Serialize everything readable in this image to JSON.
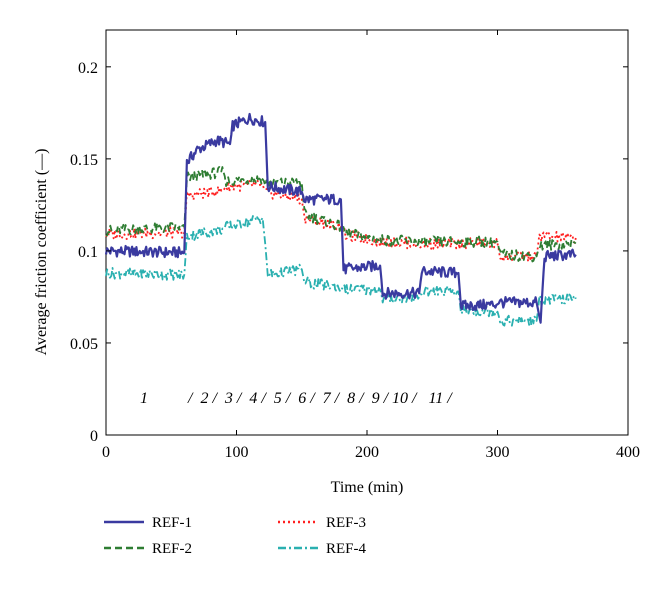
{
  "chart_data": {
    "type": "line",
    "xlabel": "Time (min)",
    "ylabel": "Average friction coefficient (—)",
    "xlim": [
      0,
      400
    ],
    "ylim": [
      0,
      0.22
    ],
    "xticks": [
      0,
      100,
      200,
      300,
      400
    ],
    "xtick_labels": [
      "0",
      "100",
      "200",
      "300",
      "400"
    ],
    "yticks": [
      0,
      0.05,
      0.1,
      0.15,
      0.2
    ],
    "ytick_labels": [
      "0",
      "0.05",
      "0.1",
      "0.15",
      "0.2"
    ],
    "grid": false,
    "legend_position": "below",
    "stage_annotation": "1          /  2 /  3 /  4 /  5 /  6 /  7 /  8 /  9 / 10 /   11 /",
    "series": [
      {
        "name": "REF-1",
        "color": "#3a3aa0",
        "dash": "solid",
        "points": [
          [
            0,
            0.1
          ],
          [
            60,
            0.099
          ],
          [
            62,
            0.148
          ],
          [
            70,
            0.155
          ],
          [
            85,
            0.16
          ],
          [
            95,
            0.158
          ],
          [
            97,
            0.168
          ],
          [
            110,
            0.172
          ],
          [
            122,
            0.17
          ],
          [
            124,
            0.135
          ],
          [
            150,
            0.132
          ],
          [
            152,
            0.128
          ],
          [
            180,
            0.128
          ],
          [
            182,
            0.09
          ],
          [
            210,
            0.092
          ],
          [
            212,
            0.077
          ],
          [
            240,
            0.077
          ],
          [
            242,
            0.089
          ],
          [
            270,
            0.088
          ],
          [
            272,
            0.07
          ],
          [
            300,
            0.071
          ],
          [
            302,
            0.072
          ],
          [
            330,
            0.072
          ],
          [
            333,
            0.061
          ],
          [
            336,
            0.097
          ],
          [
            360,
            0.098
          ]
        ]
      },
      {
        "name": "REF-2",
        "color": "#2e7d32",
        "dash": "dashed",
        "points": [
          [
            0,
            0.111
          ],
          [
            60,
            0.113
          ],
          [
            62,
            0.14
          ],
          [
            90,
            0.143
          ],
          [
            92,
            0.138
          ],
          [
            120,
            0.139
          ],
          [
            122,
            0.137
          ],
          [
            150,
            0.137
          ],
          [
            152,
            0.12
          ],
          [
            180,
            0.113
          ],
          [
            182,
            0.11
          ],
          [
            210,
            0.106
          ],
          [
            240,
            0.105
          ],
          [
            270,
            0.105
          ],
          [
            300,
            0.105
          ],
          [
            302,
            0.098
          ],
          [
            330,
            0.097
          ],
          [
            332,
            0.103
          ],
          [
            360,
            0.104
          ]
        ]
      },
      {
        "name": "REF-3",
        "color": "#ff2020",
        "dash": "dotted",
        "points": [
          [
            0,
            0.109
          ],
          [
            60,
            0.11
          ],
          [
            62,
            0.13
          ],
          [
            90,
            0.133
          ],
          [
            92,
            0.135
          ],
          [
            120,
            0.136
          ],
          [
            122,
            0.132
          ],
          [
            150,
            0.128
          ],
          [
            152,
            0.118
          ],
          [
            180,
            0.113
          ],
          [
            182,
            0.109
          ],
          [
            210,
            0.105
          ],
          [
            240,
            0.104
          ],
          [
            270,
            0.104
          ],
          [
            300,
            0.104
          ],
          [
            302,
            0.097
          ],
          [
            330,
            0.097
          ],
          [
            332,
            0.108
          ],
          [
            360,
            0.107
          ]
        ]
      },
      {
        "name": "REF-4",
        "color": "#2ab0b0",
        "dash": "dashdot",
        "points": [
          [
            0,
            0.088
          ],
          [
            60,
            0.087
          ],
          [
            62,
            0.108
          ],
          [
            90,
            0.112
          ],
          [
            92,
            0.113
          ],
          [
            120,
            0.118
          ],
          [
            122,
            0.104
          ],
          [
            124,
            0.087
          ],
          [
            150,
            0.09
          ],
          [
            152,
            0.083
          ],
          [
            180,
            0.08
          ],
          [
            182,
            0.079
          ],
          [
            210,
            0.079
          ],
          [
            212,
            0.074
          ],
          [
            240,
            0.075
          ],
          [
            242,
            0.078
          ],
          [
            270,
            0.078
          ],
          [
            272,
            0.068
          ],
          [
            300,
            0.067
          ],
          [
            302,
            0.062
          ],
          [
            330,
            0.062
          ],
          [
            332,
            0.073
          ],
          [
            360,
            0.074
          ]
        ]
      }
    ]
  }
}
